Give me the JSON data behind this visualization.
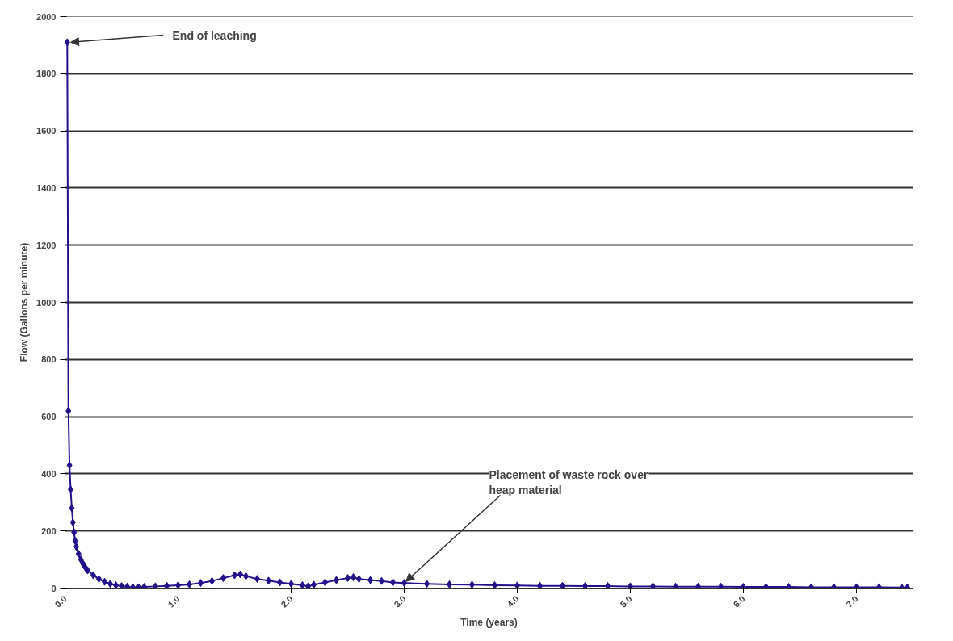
{
  "chart_data": {
    "type": "line",
    "xlabel": "Time (years)",
    "ylabel": "Flow (Gallons per minute)",
    "x": [
      0.02,
      0.03,
      0.04,
      0.05,
      0.06,
      0.07,
      0.08,
      0.09,
      0.1,
      0.12,
      0.14,
      0.16,
      0.18,
      0.2,
      0.25,
      0.3,
      0.35,
      0.4,
      0.45,
      0.5,
      0.55,
      0.6,
      0.65,
      0.7,
      0.8,
      0.9,
      1.0,
      1.1,
      1.2,
      1.3,
      1.4,
      1.5,
      1.55,
      1.6,
      1.7,
      1.8,
      1.9,
      2.0,
      2.1,
      2.15,
      2.2,
      2.3,
      2.4,
      2.5,
      2.55,
      2.6,
      2.7,
      2.8,
      2.9,
      3.0,
      3.2,
      3.4,
      3.6,
      3.8,
      4.0,
      4.2,
      4.4,
      4.6,
      4.8,
      5.0,
      5.2,
      5.4,
      5.6,
      5.8,
      6.0,
      6.2,
      6.4,
      6.6,
      6.8,
      7.0,
      7.2,
      7.4,
      7.45
    ],
    "series": [
      {
        "color": "#21128c",
        "values": [
          1910,
          620,
          430,
          345,
          280,
          230,
          195,
          165,
          145,
          120,
          100,
          85,
          72,
          62,
          45,
          32,
          22,
          15,
          10,
          7,
          5,
          3,
          3,
          4,
          6,
          8,
          10,
          13,
          18,
          25,
          35,
          45,
          48,
          42,
          32,
          26,
          20,
          15,
          10,
          6,
          12,
          20,
          28,
          35,
          38,
          32,
          28,
          25,
          20,
          18,
          15,
          13,
          12,
          10,
          9,
          8,
          8,
          7,
          7,
          6,
          6,
          5,
          5,
          5,
          4,
          4,
          4,
          3,
          3,
          3,
          3,
          2,
          2
        ]
      }
    ],
    "xlim": [
      0,
      7.5
    ],
    "ylim": [
      0,
      2000
    ],
    "xticks": [
      {
        "value": 0,
        "label": "0.0"
      },
      {
        "value": 1,
        "label": "1.0"
      },
      {
        "value": 2,
        "label": "2.0"
      },
      {
        "value": 3,
        "label": "3.0"
      },
      {
        "value": 4,
        "label": "4.0"
      },
      {
        "value": 5,
        "label": "5.0"
      },
      {
        "value": 6,
        "label": "6.0"
      },
      {
        "value": 7,
        "label": "7.0"
      }
    ],
    "yticks": [
      0,
      200,
      400,
      600,
      800,
      1000,
      1200,
      1400,
      1600,
      1800,
      2000
    ],
    "grid": "y",
    "marker": "diamond",
    "line_style": "solid",
    "annotations": [
      {
        "text": "End of leaching",
        "x": 0.02,
        "y": 1910
      },
      {
        "text": "Placement of waste rock over heap material",
        "x": 3.0,
        "y": 18
      }
    ]
  }
}
